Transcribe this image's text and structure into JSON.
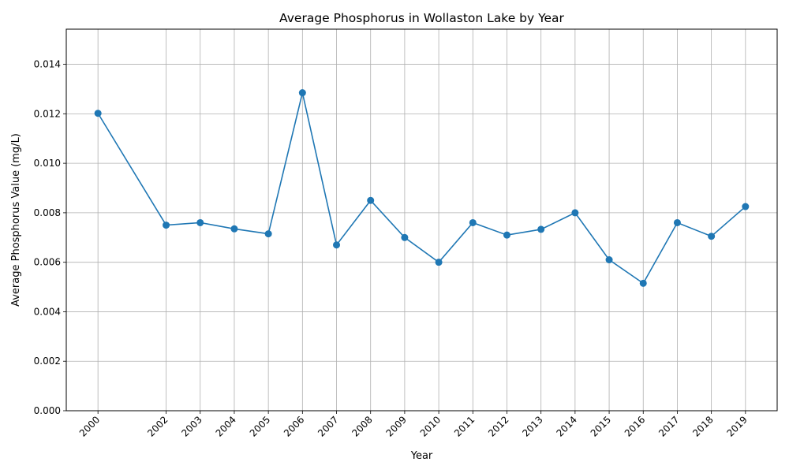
{
  "chart_data": {
    "type": "line",
    "title": "Average Phosphorus in Wollaston Lake by Year",
    "xlabel": "Year",
    "ylabel": "Average Phosphorus Value (mg/L)",
    "x": [
      2000,
      2002,
      2003,
      2004,
      2005,
      2006,
      2007,
      2008,
      2009,
      2010,
      2011,
      2012,
      2013,
      2014,
      2015,
      2016,
      2017,
      2018,
      2019
    ],
    "values": [
      0.01202,
      0.0075,
      0.0076,
      0.00735,
      0.00715,
      0.01285,
      0.0067,
      0.0085,
      0.007,
      0.006,
      0.0076,
      0.0071,
      0.00733,
      0.008,
      0.0061,
      0.00515,
      0.0076,
      0.00705,
      0.00825
    ],
    "xlim": [
      1999.07,
      2019.93
    ],
    "ylim": [
      0,
      0.01542
    ],
    "yticks": [
      0.0,
      0.002,
      0.004,
      0.006,
      0.008,
      0.01,
      0.012,
      0.014
    ],
    "ytick_labels": [
      "0.000",
      "0.002",
      "0.004",
      "0.006",
      "0.008",
      "0.010",
      "0.012",
      "0.014"
    ],
    "xtick_labels": [
      "2000",
      "2002",
      "2003",
      "2004",
      "2005",
      "2006",
      "2007",
      "2008",
      "2009",
      "2010",
      "2011",
      "2012",
      "2013",
      "2014",
      "2015",
      "2016",
      "2017",
      "2018",
      "2019"
    ],
    "grid": true,
    "markers": "circle",
    "color": "#1f77b4"
  }
}
